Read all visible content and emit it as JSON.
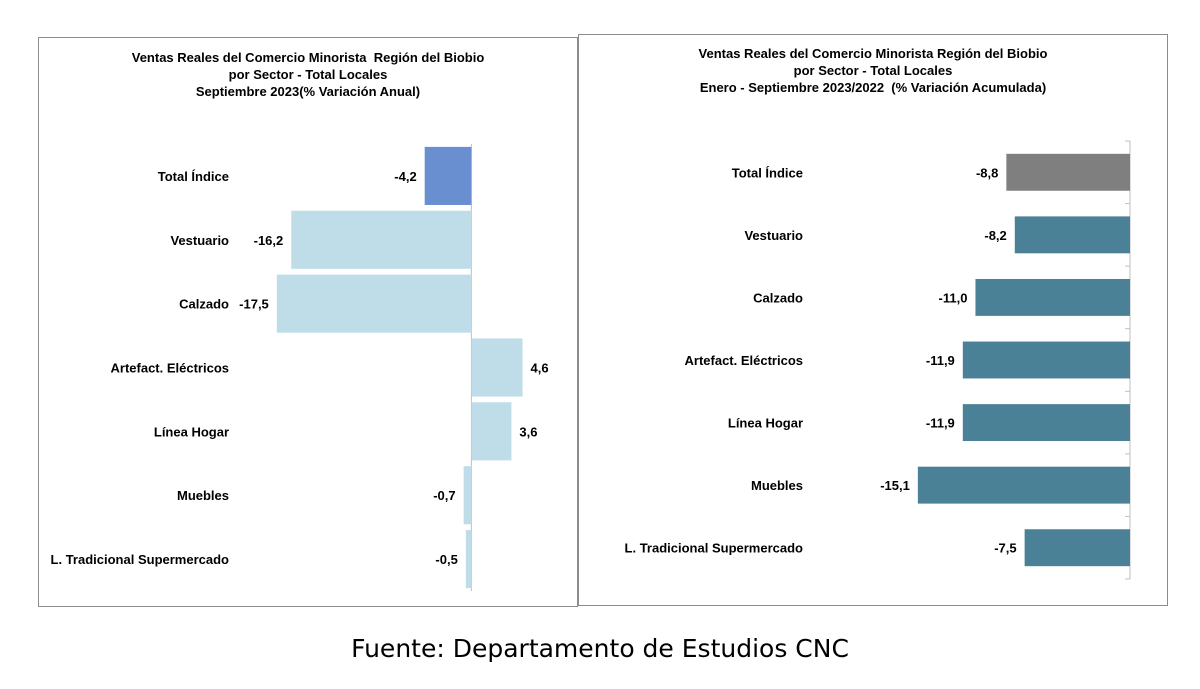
{
  "chart_data": [
    {
      "type": "bar",
      "orientation": "horizontal",
      "title": [
        "Ventas Reales del Comercio Minorista  Región del Biobio",
        "por Sector - Total Locales",
        "Septiembre 2023(% Variación Anual)"
      ],
      "categories": [
        "Total Índice",
        "Vestuario",
        "Calzado",
        "Artefact. Eléctricos",
        "Línea Hogar",
        "Muebles",
        "L. Tradicional Supermercado"
      ],
      "values": [
        -4.2,
        -16.2,
        -17.5,
        4.6,
        3.6,
        -0.7,
        -0.5
      ],
      "data_labels": [
        "-4,2",
        "-16,2",
        "-17,5",
        "4,6",
        "3,6",
        "-0,7",
        "-0,5"
      ],
      "colors": [
        "#6a8fd1",
        "#bfdde8",
        "#bfdde8",
        "#bfdde8",
        "#bfdde8",
        "#bfdde8",
        "#bfdde8"
      ],
      "xlim": [
        -20,
        5
      ],
      "grid": false,
      "legend": "none"
    },
    {
      "type": "bar",
      "orientation": "horizontal",
      "title": [
        "Ventas Reales del Comercio Minorista Región del Biobio",
        "por Sector - Total Locales",
        "Enero - Septiembre 2023/2022  (% Variación Acumulada)"
      ],
      "categories": [
        "Total Índice",
        "Vestuario",
        "Calzado",
        "Artefact. Eléctricos",
        "Línea Hogar",
        "Muebles",
        "L. Tradicional Supermercado"
      ],
      "values": [
        -8.8,
        -8.2,
        -11.0,
        -11.9,
        -11.9,
        -15.1,
        -7.5
      ],
      "data_labels": [
        "-8,8",
        "-8,2",
        "-11,0",
        "-11,9",
        "-11,9",
        "-15,1",
        "-7,5"
      ],
      "colors": [
        "#7f7f7f",
        "#4a8196",
        "#4a8196",
        "#4a8196",
        "#4a8196",
        "#4a8196",
        "#4a8196"
      ],
      "xlim": [
        -20,
        0
      ],
      "grid": false,
      "legend": "none"
    }
  ],
  "footnote": "Fuente: Departamento de Estudios CNC"
}
